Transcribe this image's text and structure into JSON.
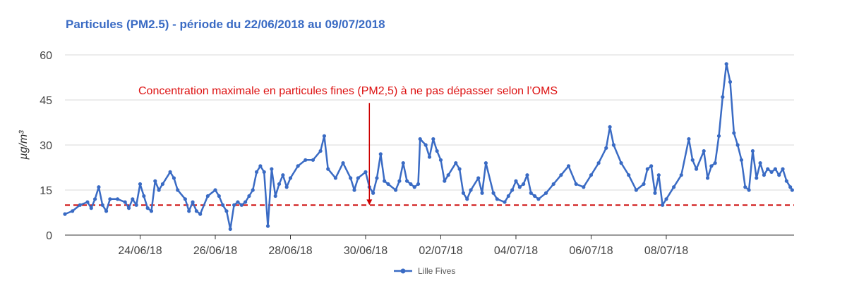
{
  "chart_data": {
    "type": "line",
    "title": "Particules (PM2.5) - période du 22/06/2018 au 09/07/2018",
    "ylabel": "µg/m³",
    "xlabel": "",
    "ylim": [
      0,
      60
    ],
    "yticks": [
      0,
      15,
      30,
      45,
      60
    ],
    "x_ticks": [
      {
        "label": "24/06/18",
        "day": 2
      },
      {
        "label": "26/06/18",
        "day": 4
      },
      {
        "label": "28/06/18",
        "day": 6
      },
      {
        "label": "30/06/18",
        "day": 8
      },
      {
        "label": "02/07/18",
        "day": 10
      },
      {
        "label": "04/07/18",
        "day": 12
      },
      {
        "label": "06/07/18",
        "day": 14
      },
      {
        "label": "08/07/18",
        "day": 16
      }
    ],
    "threshold": {
      "value": 10,
      "color": "#cc0000"
    },
    "annotation": {
      "text": "Concentration maximale en particules fines (PM2,5) à ne pas dépasser selon l’OMS",
      "day": 8.1,
      "value_from": 44,
      "value_to": 10
    },
    "series": [
      {
        "name": "Lille Fives",
        "color": "#3a6bc4",
        "points": [
          [
            0.0,
            7
          ],
          [
            0.2,
            8
          ],
          [
            0.4,
            10
          ],
          [
            0.6,
            11
          ],
          [
            0.7,
            9
          ],
          [
            0.8,
            12
          ],
          [
            0.9,
            16
          ],
          [
            1.0,
            10
          ],
          [
            1.1,
            8
          ],
          [
            1.2,
            12
          ],
          [
            1.4,
            12
          ],
          [
            1.6,
            11
          ],
          [
            1.7,
            9
          ],
          [
            1.8,
            12
          ],
          [
            1.9,
            10
          ],
          [
            2.0,
            17
          ],
          [
            2.1,
            13
          ],
          [
            2.2,
            9
          ],
          [
            2.3,
            8
          ],
          [
            2.4,
            18
          ],
          [
            2.5,
            15
          ],
          [
            2.6,
            17
          ],
          [
            2.8,
            21
          ],
          [
            2.9,
            19
          ],
          [
            3.0,
            15
          ],
          [
            3.2,
            12
          ],
          [
            3.3,
            8
          ],
          [
            3.4,
            11
          ],
          [
            3.5,
            8
          ],
          [
            3.6,
            7
          ],
          [
            3.8,
            13
          ],
          [
            4.0,
            15
          ],
          [
            4.1,
            13
          ],
          [
            4.2,
            10
          ],
          [
            4.3,
            8
          ],
          [
            4.4,
            2
          ],
          [
            4.5,
            10
          ],
          [
            4.6,
            11
          ],
          [
            4.7,
            10
          ],
          [
            4.8,
            11
          ],
          [
            4.9,
            13
          ],
          [
            5.0,
            15
          ],
          [
            5.1,
            21
          ],
          [
            5.2,
            23
          ],
          [
            5.3,
            21
          ],
          [
            5.4,
            3
          ],
          [
            5.5,
            22
          ],
          [
            5.6,
            13
          ],
          [
            5.7,
            17
          ],
          [
            5.8,
            20
          ],
          [
            5.9,
            16
          ],
          [
            6.0,
            19
          ],
          [
            6.2,
            23
          ],
          [
            6.4,
            25
          ],
          [
            6.6,
            25
          ],
          [
            6.8,
            28
          ],
          [
            6.9,
            33
          ],
          [
            7.0,
            22
          ],
          [
            7.2,
            19
          ],
          [
            7.4,
            24
          ],
          [
            7.6,
            19
          ],
          [
            7.7,
            15
          ],
          [
            7.8,
            19
          ],
          [
            8.0,
            21
          ],
          [
            8.1,
            16
          ],
          [
            8.2,
            14
          ],
          [
            8.3,
            19
          ],
          [
            8.4,
            27
          ],
          [
            8.5,
            18
          ],
          [
            8.6,
            17
          ],
          [
            8.8,
            15
          ],
          [
            8.9,
            18
          ],
          [
            9.0,
            24
          ],
          [
            9.1,
            18
          ],
          [
            9.2,
            17
          ],
          [
            9.3,
            16
          ],
          [
            9.4,
            17
          ],
          [
            9.45,
            32
          ],
          [
            9.6,
            30
          ],
          [
            9.7,
            26
          ],
          [
            9.8,
            32
          ],
          [
            9.9,
            28
          ],
          [
            10.0,
            25
          ],
          [
            10.1,
            18
          ],
          [
            10.2,
            20
          ],
          [
            10.4,
            24
          ],
          [
            10.5,
            22
          ],
          [
            10.6,
            14
          ],
          [
            10.7,
            12
          ],
          [
            10.8,
            15
          ],
          [
            11.0,
            19
          ],
          [
            11.1,
            14
          ],
          [
            11.2,
            24
          ],
          [
            11.4,
            14
          ],
          [
            11.5,
            12
          ],
          [
            11.7,
            11
          ],
          [
            11.8,
            13
          ],
          [
            11.9,
            15
          ],
          [
            12.0,
            18
          ],
          [
            12.1,
            16
          ],
          [
            12.2,
            17
          ],
          [
            12.3,
            20
          ],
          [
            12.4,
            14
          ],
          [
            12.5,
            13
          ],
          [
            12.6,
            12
          ],
          [
            12.8,
            14
          ],
          [
            13.0,
            17
          ],
          [
            13.2,
            20
          ],
          [
            13.4,
            23
          ],
          [
            13.6,
            17
          ],
          [
            13.8,
            16
          ],
          [
            14.0,
            20
          ],
          [
            14.2,
            24
          ],
          [
            14.4,
            29
          ],
          [
            14.5,
            36
          ],
          [
            14.6,
            30
          ],
          [
            14.8,
            24
          ],
          [
            15.0,
            20
          ],
          [
            15.2,
            15
          ],
          [
            15.4,
            17
          ],
          [
            15.5,
            22
          ],
          [
            15.6,
            23
          ],
          [
            15.7,
            14
          ],
          [
            15.8,
            20
          ],
          [
            15.9,
            10
          ],
          [
            16.0,
            12
          ],
          [
            16.2,
            16
          ],
          [
            16.4,
            20
          ],
          [
            16.6,
            32
          ],
          [
            16.7,
            25
          ],
          [
            16.8,
            22
          ],
          [
            17.0,
            28
          ],
          [
            17.1,
            19
          ],
          [
            17.2,
            23
          ],
          [
            17.3,
            24
          ],
          [
            17.4,
            33
          ],
          [
            17.5,
            46
          ],
          [
            17.6,
            57
          ],
          [
            17.7,
            51
          ],
          [
            17.8,
            34
          ],
          [
            17.9,
            30
          ],
          [
            18.0,
            25
          ],
          [
            18.1,
            16
          ],
          [
            18.2,
            15
          ],
          [
            18.3,
            28
          ],
          [
            18.4,
            19
          ],
          [
            18.5,
            24
          ],
          [
            18.6,
            20
          ],
          [
            18.7,
            22
          ],
          [
            18.8,
            21
          ],
          [
            18.9,
            22
          ],
          [
            19.0,
            20
          ],
          [
            19.1,
            22
          ],
          [
            19.2,
            18
          ],
          [
            19.3,
            16
          ],
          [
            19.35,
            15
          ]
        ]
      }
    ],
    "x_range_days": [
      0,
      19.4
    ],
    "legend": {
      "placement": "bottom-center"
    }
  }
}
